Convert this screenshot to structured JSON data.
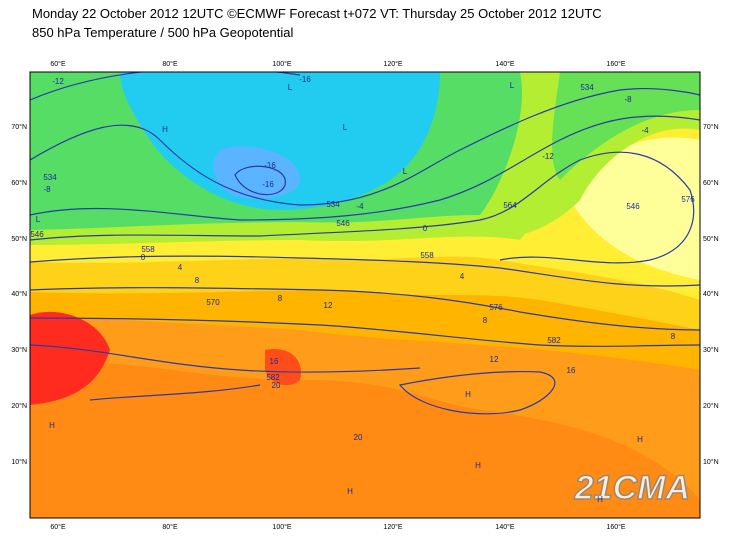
{
  "header": {
    "title": "Monday 22 October 2012 12UTC ©ECMWF Forecast t+072 VT: Thursday 25 October 2012 12UTC",
    "subtitle": "850 hPa Temperature / 500 hPa Geopotential"
  },
  "map": {
    "longitude_labels": [
      "60°E",
      "80°E",
      "100°E",
      "120°E",
      "140°E",
      "160°E"
    ],
    "latitude_labels": [
      "70°N",
      "60°N",
      "50°N",
      "40°N",
      "30°N",
      "20°N",
      "10°N"
    ],
    "contour_labels": [
      -12,
      -16,
      534,
      -8,
      -12,
      -4,
      534,
      -8,
      -16,
      -16,
      534,
      -4,
      546,
      546,
      0,
      564,
      546,
      576,
      558,
      0,
      4,
      558,
      4,
      8,
      570,
      8,
      12,
      576,
      8,
      582,
      8,
      16,
      582,
      20,
      12,
      16,
      20
    ],
    "pressure_centers": [
      "L",
      "H",
      "L",
      "L",
      "L",
      "L",
      "H",
      "H",
      "H",
      "H",
      "H",
      "H"
    ],
    "watermark": "21CMA"
  }
}
